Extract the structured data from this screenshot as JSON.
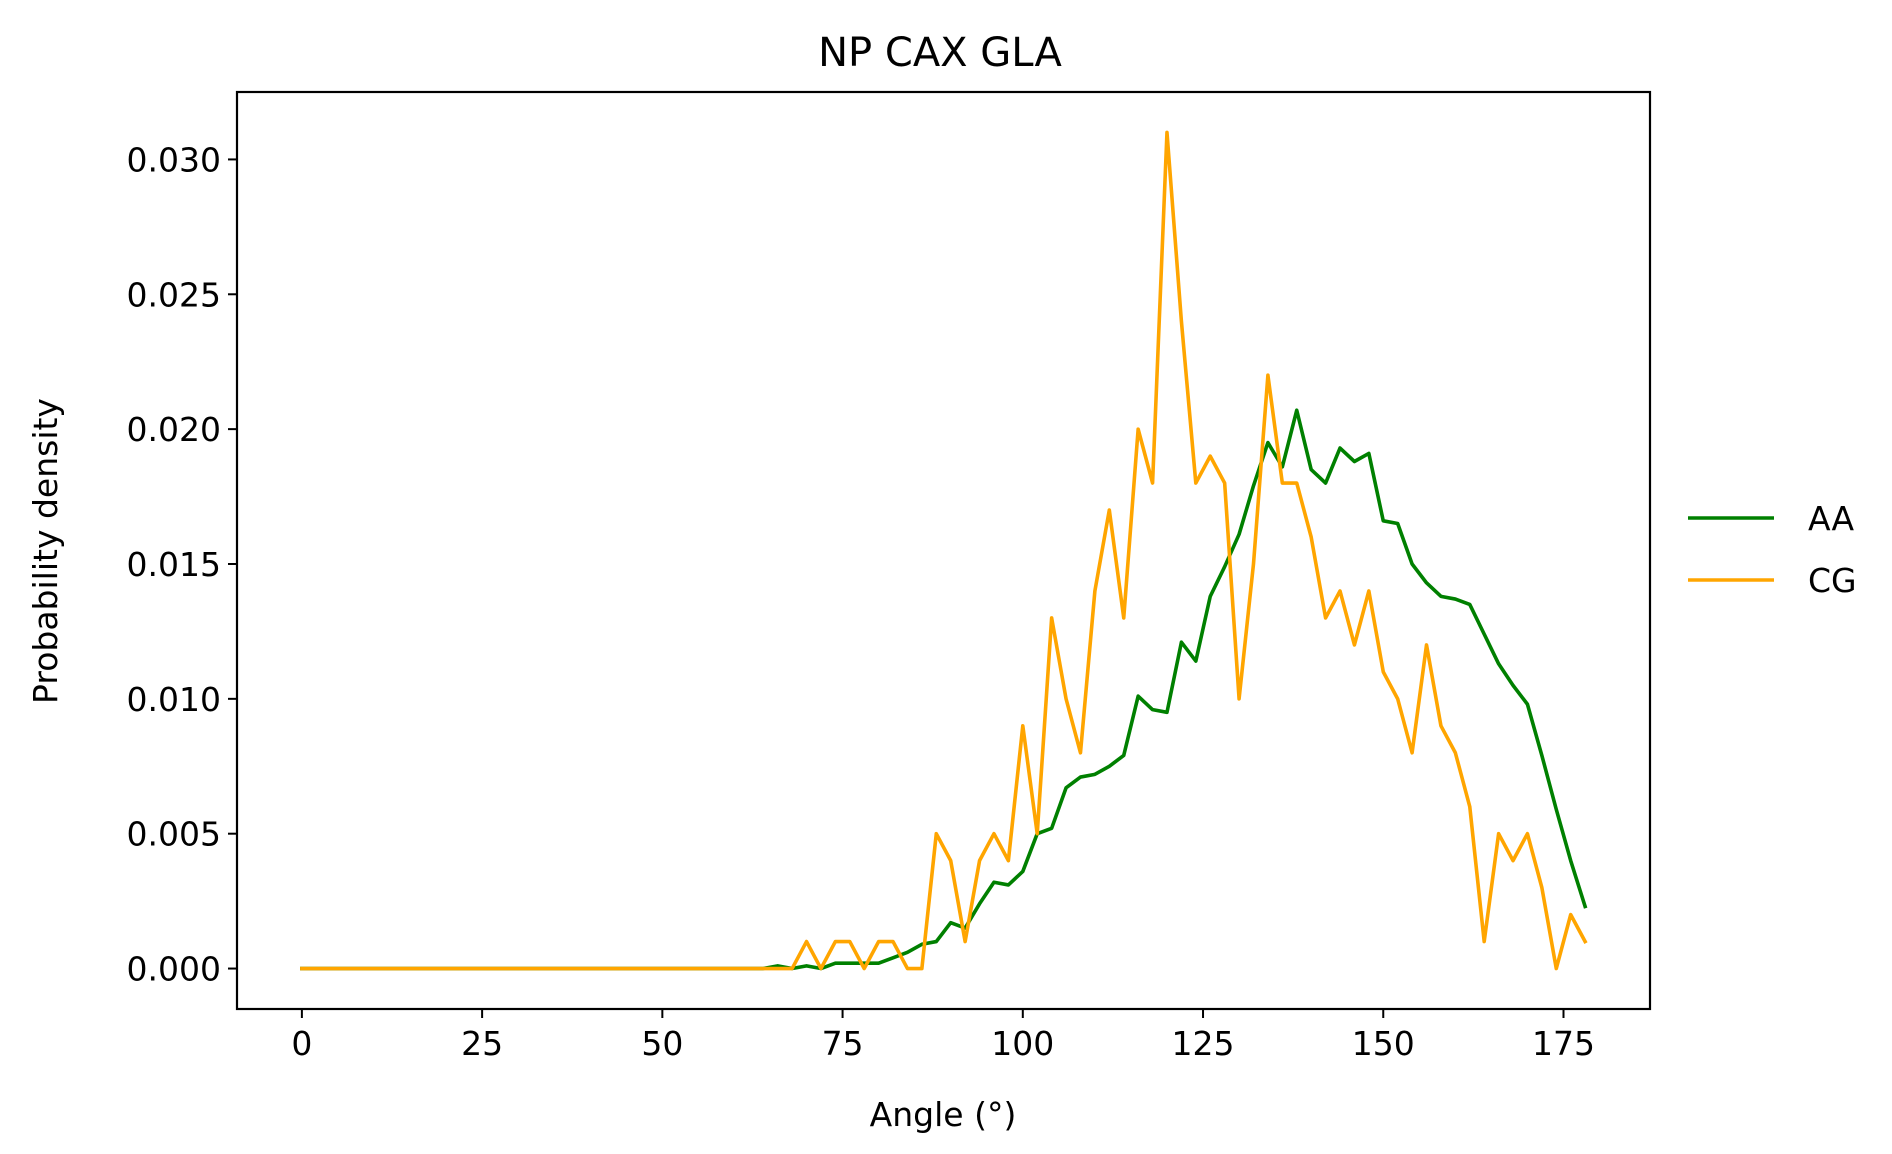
{
  "chart_data": {
    "type": "line",
    "title": "NP CAX GLA",
    "xlabel": "Angle (°)",
    "ylabel": "Probability density",
    "xlim": [
      -9,
      187
    ],
    "ylim": [
      -0.0015,
      0.0325
    ],
    "xticks": [
      0,
      25,
      50,
      75,
      100,
      125,
      150,
      175
    ],
    "yticks": [
      0.0,
      0.005,
      0.01,
      0.015,
      0.02,
      0.025,
      0.03
    ],
    "ytick_labels": [
      "0.000",
      "0.005",
      "0.010",
      "0.015",
      "0.020",
      "0.025",
      "0.030"
    ],
    "legend_position": "right",
    "grid": false,
    "x": [
      0,
      2,
      4,
      6,
      8,
      10,
      12,
      14,
      16,
      18,
      20,
      22,
      24,
      26,
      28,
      30,
      32,
      34,
      36,
      38,
      40,
      42,
      44,
      46,
      48,
      50,
      52,
      54,
      56,
      58,
      60,
      62,
      64,
      66,
      68,
      70,
      72,
      74,
      76,
      78,
      80,
      82,
      84,
      86,
      88,
      90,
      92,
      94,
      96,
      98,
      100,
      102,
      104,
      106,
      108,
      110,
      112,
      114,
      116,
      118,
      120,
      122,
      124,
      126,
      128,
      130,
      132,
      134,
      136,
      138,
      140,
      142,
      144,
      146,
      148,
      150,
      152,
      154,
      156,
      158,
      160,
      162,
      164,
      166,
      168,
      170,
      172,
      174,
      176,
      178
    ],
    "series": [
      {
        "name": "AA",
        "color": "#008000",
        "values": [
          0,
          0,
          0,
          0,
          0,
          0,
          0,
          0,
          0,
          0,
          0,
          0,
          0,
          0,
          0,
          0,
          0,
          0,
          0,
          0,
          0,
          0,
          0,
          0,
          0,
          0,
          0,
          0,
          0,
          0,
          0,
          0,
          0,
          0.0001,
          0,
          0.0001,
          0,
          0.0002,
          0.0002,
          0.0002,
          0.0002,
          0.0004,
          0.0006,
          0.0009,
          0.001,
          0.0017,
          0.0015,
          0.0024,
          0.0032,
          0.0031,
          0.0036,
          0.005,
          0.0052,
          0.0067,
          0.0071,
          0.0072,
          0.0075,
          0.0079,
          0.0101,
          0.0096,
          0.0095,
          0.0121,
          0.0114,
          0.0138,
          0.0149,
          0.0161,
          0.0179,
          0.0195,
          0.0186,
          0.0207,
          0.0185,
          0.018,
          0.0193,
          0.0188,
          0.0191,
          0.0166,
          0.0165,
          0.015,
          0.0143,
          0.0138,
          0.0137,
          0.0135,
          0.0124,
          0.0113,
          0.0105,
          0.0098,
          0.0079,
          0.0059,
          0.004,
          0.0023
        ]
      },
      {
        "name": "CG",
        "color": "#FFA500",
        "values": [
          0,
          0,
          0,
          0,
          0,
          0,
          0,
          0,
          0,
          0,
          0,
          0,
          0,
          0,
          0,
          0,
          0,
          0,
          0,
          0,
          0,
          0,
          0,
          0,
          0,
          0,
          0,
          0,
          0,
          0,
          0,
          0,
          0,
          0,
          0,
          0.001,
          0,
          0.001,
          0.001,
          0,
          0.001,
          0.001,
          0,
          0,
          0.005,
          0.004,
          0.001,
          0.004,
          0.005,
          0.004,
          0.009,
          0.005,
          0.013,
          0.01,
          0.008,
          0.014,
          0.017,
          0.013,
          0.02,
          0.018,
          0.031,
          0.024,
          0.018,
          0.019,
          0.018,
          0.01,
          0.015,
          0.022,
          0.018,
          0.018,
          0.016,
          0.013,
          0.014,
          0.012,
          0.014,
          0.011,
          0.01,
          0.008,
          0.012,
          0.009,
          0.008,
          0.006,
          0.001,
          0.005,
          0.004,
          0.005,
          0.003,
          0,
          0.002,
          0.001
        ]
      }
    ]
  }
}
